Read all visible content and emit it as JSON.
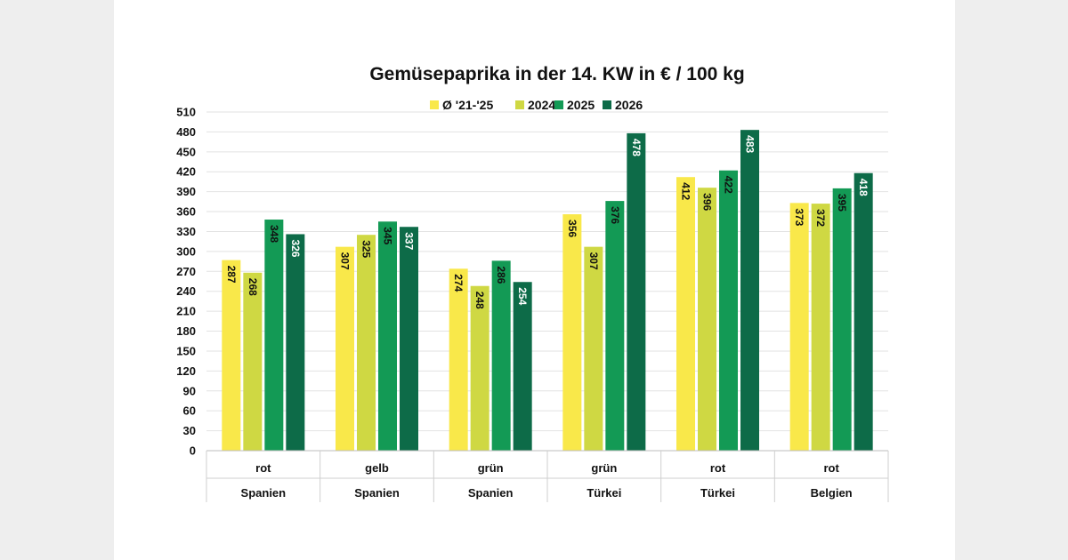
{
  "chart_data": {
    "type": "bar",
    "title": "Gemüsepaprika in der 14. KW in € / 100 kg",
    "ylim": [
      0,
      510
    ],
    "yticks": [
      0,
      30,
      60,
      90,
      120,
      150,
      180,
      210,
      240,
      270,
      300,
      330,
      360,
      390,
      420,
      450,
      480,
      510
    ],
    "grid": true,
    "legend_position": "top-center",
    "categories": [
      {
        "label": "rot",
        "group": "Spanien"
      },
      {
        "label": "gelb",
        "group": "Spanien"
      },
      {
        "label": "grün",
        "group": "Spanien"
      },
      {
        "label": "grün",
        "group": "Türkei"
      },
      {
        "label": "rot",
        "group": "Türkei"
      },
      {
        "label": "rot",
        "group": "Belgien"
      }
    ],
    "series": [
      {
        "name": "Ø '21-'25",
        "color": "#f9e84a",
        "label_color": "#111111",
        "values": [
          287,
          307,
          274,
          356,
          412,
          373
        ]
      },
      {
        "name": "2024",
        "color": "#cfd843",
        "label_color": "#111111",
        "values": [
          268,
          325,
          248,
          307,
          396,
          372
        ]
      },
      {
        "name": "2025",
        "color": "#139a55",
        "label_color": "#111111",
        "values": [
          348,
          345,
          286,
          376,
          422,
          395
        ]
      },
      {
        "name": "2026",
        "color": "#0d6b48",
        "label_color": "#ffffff",
        "values": [
          326,
          337,
          254,
          478,
          483,
          418
        ]
      }
    ]
  }
}
